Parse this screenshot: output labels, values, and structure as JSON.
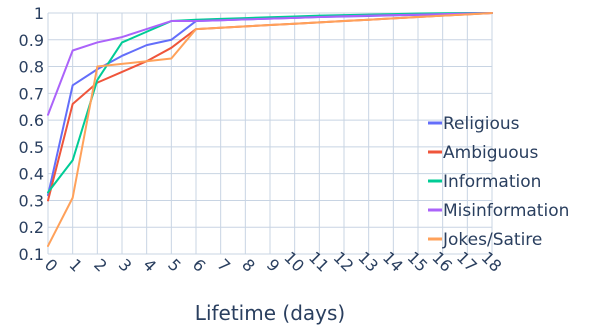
{
  "chart_data": {
    "type": "line",
    "title": "",
    "xlabel": "Lifetime (days)",
    "ylabel": "",
    "x": [
      0,
      1,
      2,
      3,
      4,
      5,
      6,
      7,
      8,
      9,
      10,
      11,
      12,
      13,
      14,
      15,
      16,
      17,
      18
    ],
    "xlim": [
      0,
      18
    ],
    "ylim": [
      0.1,
      1.0
    ],
    "yticks": [
      0.1,
      0.2,
      0.3,
      0.4,
      0.5,
      0.6,
      0.7,
      0.8,
      0.9,
      1
    ],
    "ytick_labels": [
      "0.1",
      "0.2",
      "0.3",
      "0.4",
      "0.5",
      "0.6",
      "0.7",
      "0.8",
      "0.9",
      "1"
    ],
    "xtick_labels": [
      "0",
      "1",
      "2",
      "3",
      "4",
      "5",
      "6",
      "7",
      "8",
      "9",
      "10",
      "11",
      "12",
      "13",
      "14",
      "15",
      "16",
      "17",
      "18"
    ],
    "grid": true,
    "legend_position": "right",
    "series": [
      {
        "name": "Religious",
        "color": "#636efa",
        "values": [
          0.32,
          0.73,
          0.79,
          0.84,
          0.88,
          0.9,
          0.97,
          0.973,
          0.976,
          0.979,
          0.982,
          0.985,
          0.987,
          0.989,
          0.991,
          0.993,
          0.995,
          0.997,
          1.0
        ]
      },
      {
        "name": "Ambiguous",
        "color": "#ef553b",
        "values": [
          0.3,
          0.66,
          0.74,
          0.78,
          0.82,
          0.87,
          0.94,
          0.945,
          0.95,
          0.955,
          0.96,
          0.965,
          0.97,
          0.975,
          0.98,
          0.985,
          0.99,
          0.995,
          1.0
        ]
      },
      {
        "name": "Information",
        "color": "#00cc96",
        "values": [
          0.33,
          0.45,
          0.75,
          0.89,
          0.93,
          0.97,
          0.975,
          0.978,
          0.981,
          0.984,
          0.987,
          0.99,
          0.992,
          0.994,
          0.996,
          0.998,
          0.999,
          1.0,
          1.0
        ]
      },
      {
        "name": "Misinformation",
        "color": "#ab63fa",
        "values": [
          0.62,
          0.86,
          0.89,
          0.91,
          0.94,
          0.97,
          0.97,
          0.973,
          0.976,
          0.979,
          0.982,
          0.985,
          0.988,
          0.99,
          0.992,
          0.994,
          0.996,
          0.998,
          1.0
        ]
      },
      {
        "name": "Jokes/Satire",
        "color": "#ffa15a",
        "values": [
          0.13,
          0.31,
          0.8,
          0.81,
          0.82,
          0.83,
          0.94,
          0.945,
          0.95,
          0.955,
          0.96,
          0.965,
          0.97,
          0.975,
          0.98,
          0.985,
          0.99,
          0.995,
          1.0
        ]
      }
    ]
  }
}
